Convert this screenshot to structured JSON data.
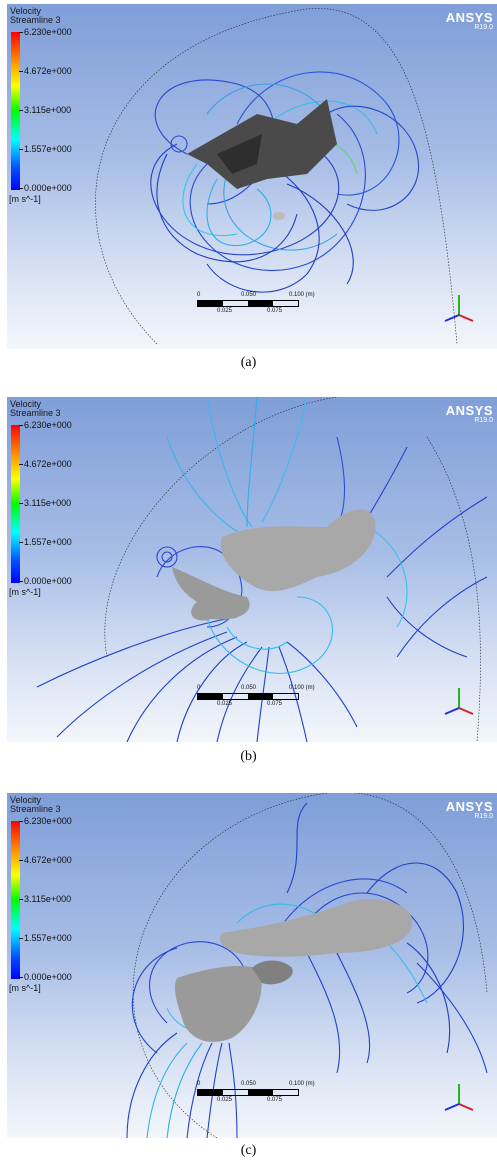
{
  "panels": [
    {
      "title_line1": "Velocity",
      "title_line2": "Streamline 3",
      "ticks": [
        "6.230e+000",
        "4.672e+000",
        "3.115e+000",
        "1.557e+000",
        "0.000e+000"
      ],
      "unit": "[m s^-1]",
      "brand": "ANSYS",
      "version": "R19.0",
      "scale_top": [
        "0",
        "0.050",
        "0.100  (m)"
      ],
      "scale_bottom": [
        "0.025",
        "0.075"
      ],
      "caption": "(a)"
    },
    {
      "title_line1": "Velocity",
      "title_line2": "Streamline 3",
      "ticks": [
        "6.230e+000",
        "4.672e+000",
        "3.115e+000",
        "1.557e+000",
        "0.000e+000"
      ],
      "unit": "[m s^-1]",
      "brand": "ANSYS",
      "version": "R19.0",
      "scale_top": [
        "0",
        "0.050",
        "0.100  (m)"
      ],
      "scale_bottom": [
        "0.025",
        "0.075"
      ],
      "caption": "(b)"
    },
    {
      "title_line1": "Velocity",
      "title_line2": "Streamline 3",
      "ticks": [
        "6.230e+000",
        "4.672e+000",
        "3.115e+000",
        "1.557e+000",
        "0.000e+000"
      ],
      "unit": "[m s^-1]",
      "brand": "ANSYS",
      "version": "R19.0",
      "scale_top": [
        "0",
        "0.050",
        "0.100  (m)"
      ],
      "scale_bottom": [
        "0.025",
        "0.075"
      ],
      "caption": "(c)"
    }
  ],
  "colors": {
    "streamline_slow": "#1f3fc8",
    "streamline_mid": "#29b6e8",
    "streamline_fast": "#7de04a",
    "wing_dark": "#4a4a4a",
    "wing_light": "#a8a8a8"
  }
}
